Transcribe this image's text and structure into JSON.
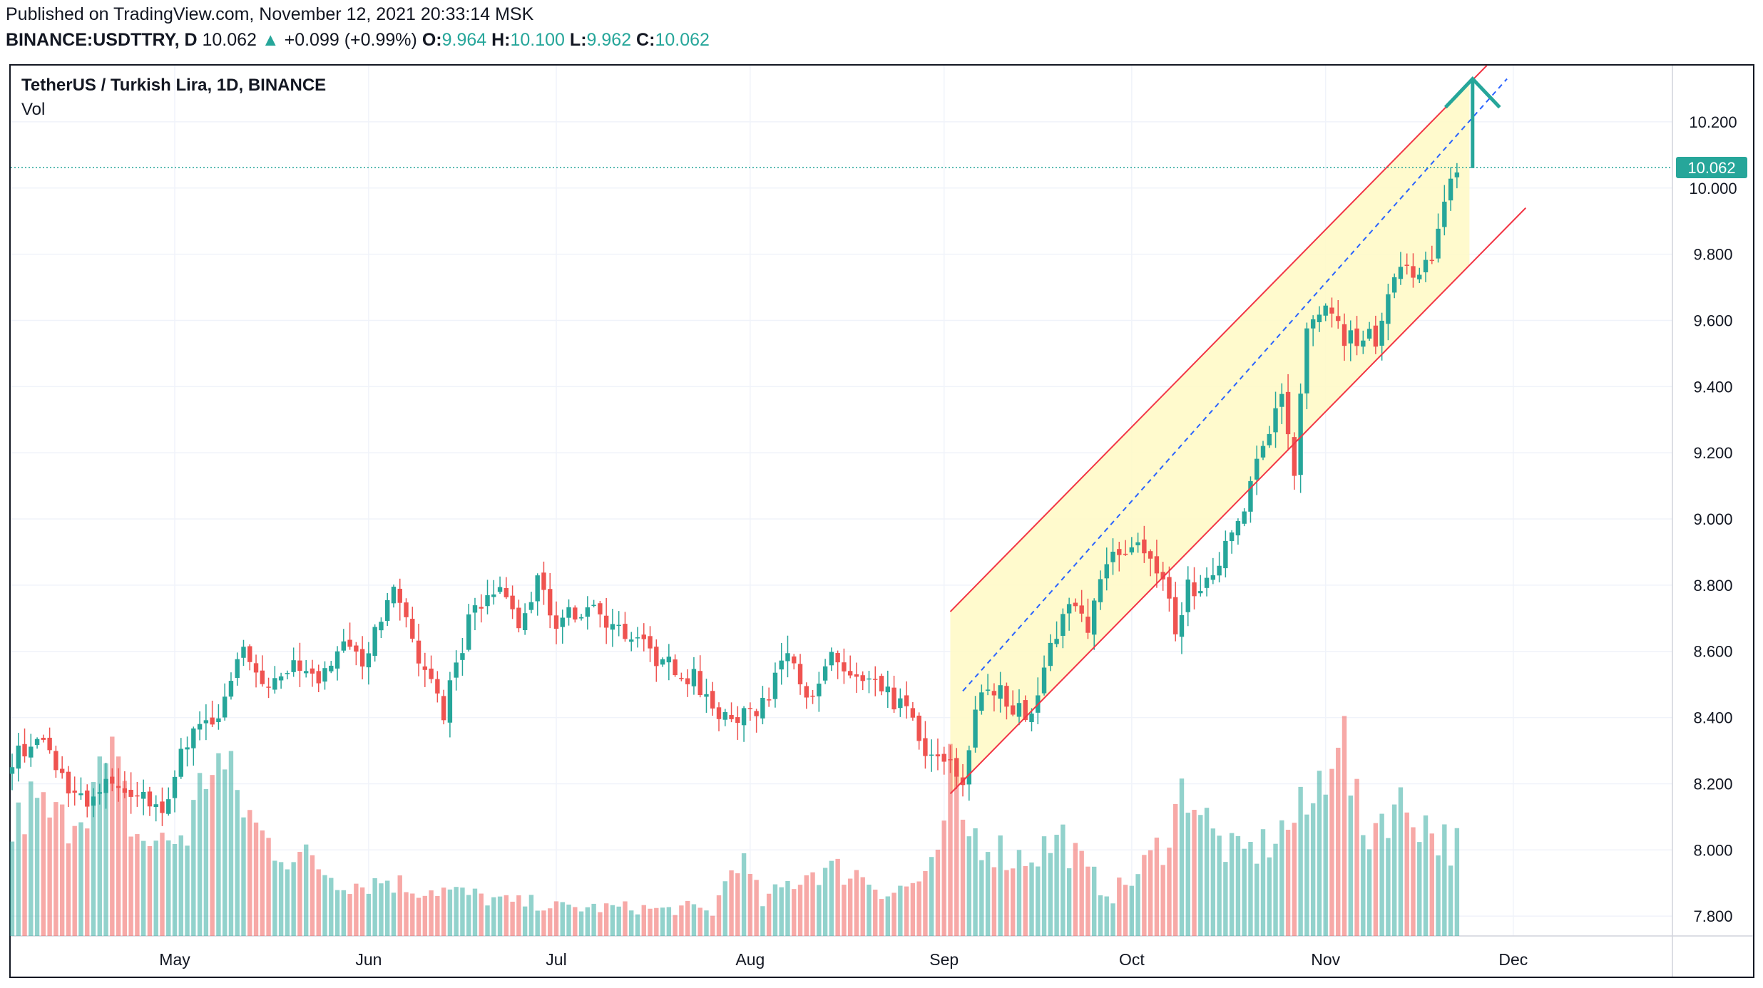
{
  "header": {
    "published": "Published on TradingView.com, November 12, 2021 20:33:14 MSK",
    "symbol": "BINANCE:USDTTRY, D",
    "last": "10.062",
    "arrow": "▲",
    "change": "+0.099 (+0.99%)",
    "o_label": "O:",
    "o": "9.964",
    "h_label": "H:",
    "h": "10.100",
    "l_label": "L:",
    "l": "9.962",
    "c_label": "C:",
    "c": "10.062"
  },
  "legend": {
    "title": "TetherUS / Turkish Lira, 1D, BINANCE",
    "volume_label": "Vol"
  },
  "colors": {
    "up": "#26a69a",
    "down": "#ef5350",
    "channel_line": "#f23645",
    "channel_fill": "#fff9c4",
    "midline": "#2962ff",
    "price_tag": "#26a69a",
    "grid": "#f0f3fa"
  },
  "chart_data": {
    "type": "candlestick",
    "symbol": "BINANCE:USDTTRY",
    "interval": "1D",
    "ylim": [
      7.74,
      10.37
    ],
    "y_ticks": [
      "10.200",
      "10.000",
      "9.800",
      "9.600",
      "9.400",
      "9.200",
      "9.000",
      "8.800",
      "8.600",
      "8.400",
      "8.200",
      "8.000",
      "7.800"
    ],
    "x_ticks": [
      {
        "label": "May",
        "day": 26
      },
      {
        "label": "Jun",
        "day": 57
      },
      {
        "label": "Jul",
        "day": 87
      },
      {
        "label": "Aug",
        "day": 118
      },
      {
        "label": "Sep",
        "day": 149
      },
      {
        "label": "Oct",
        "day": 179
      },
      {
        "label": "Nov",
        "day": 210
      },
      {
        "label": "Dec",
        "day": 240
      }
    ],
    "last_price": "10.062",
    "start_date": "2021-04-05",
    "end_date": "2021-11-12",
    "close_anchors": [
      [
        0,
        8.28
      ],
      [
        5,
        8.33
      ],
      [
        8,
        8.22
      ],
      [
        12,
        8.13
      ],
      [
        16,
        8.21
      ],
      [
        20,
        8.16
      ],
      [
        24,
        8.13
      ],
      [
        29,
        8.38
      ],
      [
        33,
        8.4
      ],
      [
        37,
        8.62
      ],
      [
        41,
        8.47
      ],
      [
        45,
        8.59
      ],
      [
        49,
        8.48
      ],
      [
        53,
        8.66
      ],
      [
        56,
        8.57
      ],
      [
        61,
        8.77
      ],
      [
        65,
        8.58
      ],
      [
        69,
        8.42
      ],
      [
        73,
        8.69
      ],
      [
        78,
        8.8
      ],
      [
        81,
        8.68
      ],
      [
        84,
        8.8
      ],
      [
        87,
        8.69
      ],
      [
        93,
        8.74
      ],
      [
        96,
        8.68
      ],
      [
        99,
        8.64
      ],
      [
        104,
        8.57
      ],
      [
        109,
        8.52
      ],
      [
        113,
        8.4
      ],
      [
        118,
        8.4
      ],
      [
        121,
        8.48
      ],
      [
        124,
        8.62
      ],
      [
        128,
        8.44
      ],
      [
        131,
        8.58
      ],
      [
        135,
        8.51
      ],
      [
        139,
        8.48
      ],
      [
        143,
        8.42
      ],
      [
        147,
        8.27
      ],
      [
        150,
        8.27
      ],
      [
        152,
        8.2
      ],
      [
        154,
        8.44
      ],
      [
        157,
        8.49
      ],
      [
        161,
        8.42
      ],
      [
        163,
        8.4
      ],
      [
        165,
        8.58
      ],
      [
        169,
        8.74
      ],
      [
        172,
        8.68
      ],
      [
        175,
        8.88
      ],
      [
        178,
        8.92
      ],
      [
        181,
        8.92
      ],
      [
        184,
        8.8
      ],
      [
        186,
        8.67
      ],
      [
        188,
        8.79
      ],
      [
        191,
        8.8
      ],
      [
        194,
        8.93
      ],
      [
        197,
        9.05
      ],
      [
        200,
        9.22
      ],
      [
        203,
        9.35
      ],
      [
        205,
        9.15
      ],
      [
        207,
        9.58
      ],
      [
        210,
        9.67
      ],
      [
        213,
        9.55
      ],
      [
        216,
        9.55
      ],
      [
        218,
        9.55
      ],
      [
        221,
        9.75
      ],
      [
        224,
        9.74
      ],
      [
        227,
        9.77
      ],
      [
        229,
        9.94
      ],
      [
        231,
        10.06
      ]
    ],
    "volume_anchors": [
      [
        0,
        0.44
      ],
      [
        3,
        0.56
      ],
      [
        8,
        0.48
      ],
      [
        12,
        0.6
      ],
      [
        16,
        0.72
      ],
      [
        20,
        0.42
      ],
      [
        24,
        0.39
      ],
      [
        28,
        0.44
      ],
      [
        32,
        0.78
      ],
      [
        36,
        0.6
      ],
      [
        40,
        0.42
      ],
      [
        44,
        0.35
      ],
      [
        48,
        0.32
      ],
      [
        52,
        0.24
      ],
      [
        56,
        0.22
      ],
      [
        60,
        0.24
      ],
      [
        64,
        0.2
      ],
      [
        68,
        0.2
      ],
      [
        72,
        0.18
      ],
      [
        76,
        0.16
      ],
      [
        80,
        0.14
      ],
      [
        84,
        0.14
      ],
      [
        88,
        0.12
      ],
      [
        92,
        0.12
      ],
      [
        96,
        0.12
      ],
      [
        100,
        0.12
      ],
      [
        104,
        0.11
      ],
      [
        108,
        0.12
      ],
      [
        112,
        0.1
      ],
      [
        116,
        0.35
      ],
      [
        120,
        0.14
      ],
      [
        124,
        0.22
      ],
      [
        128,
        0.28
      ],
      [
        132,
        0.28
      ],
      [
        136,
        0.26
      ],
      [
        140,
        0.18
      ],
      [
        144,
        0.22
      ],
      [
        148,
        0.3
      ],
      [
        150,
        0.7
      ],
      [
        152,
        0.46
      ],
      [
        156,
        0.4
      ],
      [
        160,
        0.33
      ],
      [
        164,
        0.36
      ],
      [
        168,
        0.42
      ],
      [
        172,
        0.26
      ],
      [
        176,
        0.18
      ],
      [
        180,
        0.26
      ],
      [
        184,
        0.4
      ],
      [
        188,
        0.66
      ],
      [
        192,
        0.42
      ],
      [
        196,
        0.34
      ],
      [
        200,
        0.38
      ],
      [
        204,
        0.47
      ],
      [
        208,
        0.55
      ],
      [
        212,
        0.95
      ],
      [
        214,
        0.65
      ],
      [
        216,
        0.42
      ],
      [
        220,
        0.55
      ],
      [
        224,
        0.54
      ],
      [
        228,
        0.42
      ],
      [
        231,
        0.38
      ]
    ],
    "channel": {
      "upper": {
        "start": [
          150,
          8.72
        ],
        "end": [
          242,
          10.49
        ]
      },
      "lower": {
        "start": [
          150,
          8.17
        ],
        "end": [
          242,
          9.94
        ]
      },
      "fill_end_day": 233,
      "midline": {
        "start": [
          152,
          8.48
        ],
        "end": [
          239,
          10.33
        ]
      }
    },
    "arrow": {
      "day": 233.5,
      "from": 10.06,
      "to": 10.33
    }
  }
}
